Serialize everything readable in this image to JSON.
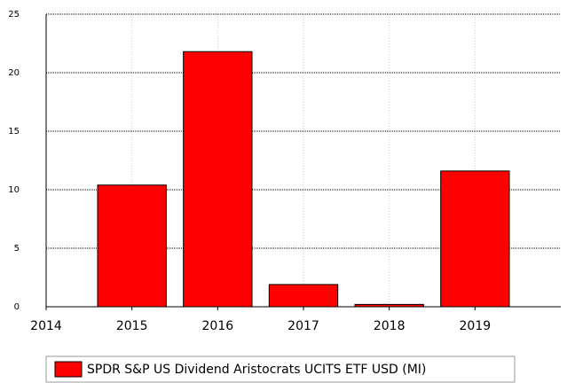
{
  "chart_data": {
    "type": "bar",
    "x": [
      2015,
      2016,
      2017,
      2018,
      2019
    ],
    "series": [
      {
        "name": "SPDR S&P US Dividend Aristocrats UCITS ETF USD (MI)",
        "color": "#ff0000",
        "values": [
          10.4,
          21.8,
          1.9,
          0.2,
          11.6
        ]
      }
    ],
    "xlim": [
      2014,
      2020
    ],
    "xticks": [
      2014,
      2015,
      2016,
      2017,
      2018,
      2019
    ],
    "ylim": [
      0,
      25
    ],
    "yticks": [
      0,
      5,
      10,
      15,
      20,
      25
    ],
    "grid": true
  }
}
